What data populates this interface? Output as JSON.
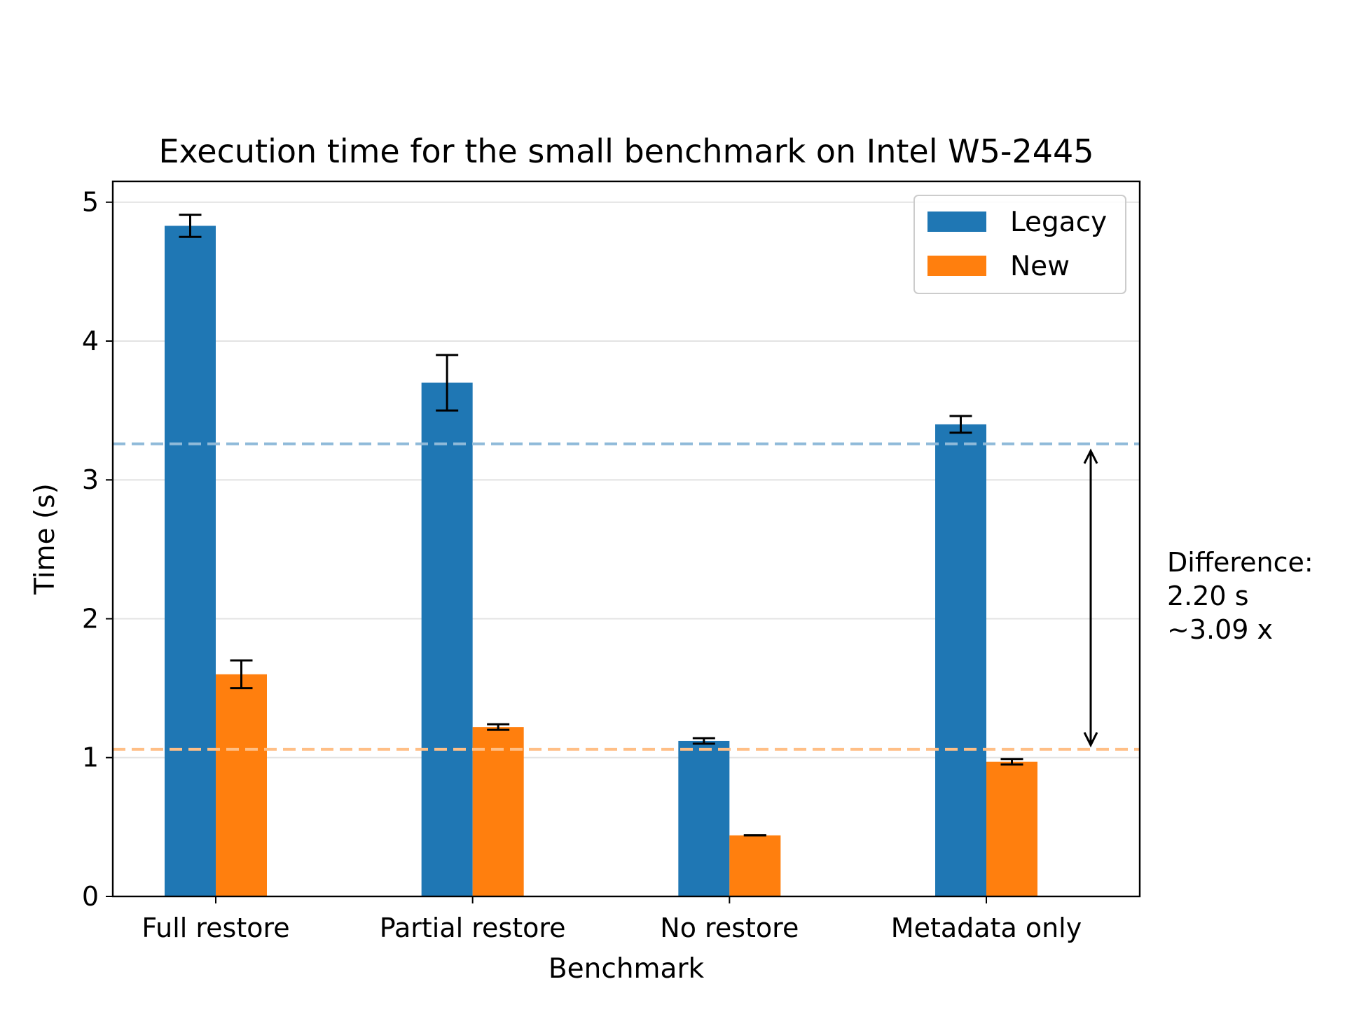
{
  "chart_data": {
    "type": "bar",
    "title": "Execution time for the small benchmark on Intel W5-2445",
    "xlabel": "Benchmark",
    "ylabel": "Time (s)",
    "categories": [
      "Full restore",
      "Partial restore",
      "No restore",
      "Metadata only"
    ],
    "series": [
      {
        "name": "Legacy",
        "color": "#1f77b4",
        "values": [
          4.83,
          3.7,
          1.12,
          3.4
        ],
        "errors": [
          0.08,
          0.2,
          0.02,
          0.06
        ]
      },
      {
        "name": "New",
        "color": "#ff7f0e",
        "values": [
          1.6,
          1.22,
          0.44,
          0.97
        ],
        "errors": [
          0.1,
          0.02,
          0.0,
          0.02
        ]
      }
    ],
    "reference_lines": [
      {
        "series": "Legacy",
        "value": 3.26,
        "style": "dashed",
        "color": "#8fbad9"
      },
      {
        "series": "New",
        "value": 1.06,
        "style": "dashed",
        "color": "#ffbf86"
      }
    ],
    "ylim": [
      0,
      5.15
    ],
    "yticks": [
      0,
      1,
      2,
      3,
      4,
      5
    ],
    "grid": "horizontal",
    "legend_position": "top-right",
    "annotation": {
      "lines": [
        "Difference:",
        "2.20 s",
        "~3.09 x"
      ]
    }
  }
}
